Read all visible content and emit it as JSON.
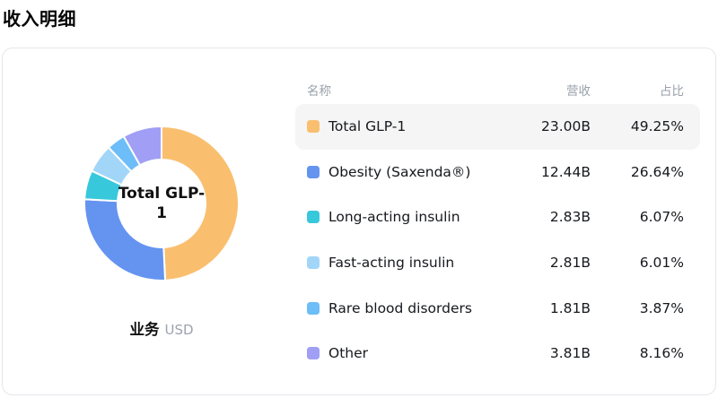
{
  "page": {
    "title": "收入明细"
  },
  "chart": {
    "center_label": "Total GLP-1",
    "caption_bold": "业务",
    "caption_unit": "USD"
  },
  "table": {
    "headers": {
      "name": "名称",
      "revenue": "营收",
      "share": "占比"
    }
  },
  "chart_data": {
    "type": "pie",
    "title": "收入明细",
    "center_label": "Total GLP-1",
    "unit": "USD",
    "legend_position": "right-table",
    "categories": [
      "Total GLP-1",
      "Obesity (Saxenda®)",
      "Long-acting insulin",
      "Fast-acting insulin",
      "Rare blood disorders",
      "Other"
    ],
    "revenue_billions": [
      23.0,
      12.44,
      2.83,
      2.81,
      1.81,
      3.81
    ],
    "share_percent": [
      49.25,
      26.64,
      6.07,
      6.01,
      3.87,
      8.16
    ],
    "series": [
      {
        "name": "Total GLP-1",
        "revenue": "23.00B",
        "share": "49.25%",
        "value": 49.25,
        "color": "#F9BF6F",
        "highlighted": true
      },
      {
        "name": "Obesity (Saxenda®)",
        "revenue": "12.44B",
        "share": "26.64%",
        "value": 26.64,
        "color": "#6494F0",
        "highlighted": false
      },
      {
        "name": "Long-acting insulin",
        "revenue": "2.83B",
        "share": "6.07%",
        "value": 6.07,
        "color": "#38C8DC",
        "highlighted": false
      },
      {
        "name": "Fast-acting insulin",
        "revenue": "2.81B",
        "share": "6.01%",
        "value": 6.01,
        "color": "#A2D6F8",
        "highlighted": false
      },
      {
        "name": "Rare blood disorders",
        "revenue": "1.81B",
        "share": "3.87%",
        "value": 3.87,
        "color": "#6CBDF8",
        "highlighted": false
      },
      {
        "name": "Other",
        "revenue": "3.81B",
        "share": "8.16%",
        "value": 8.16,
        "color": "#A09FF5",
        "highlighted": false
      }
    ],
    "donut": {
      "start_angle_deg": -90,
      "direction": "clockwise",
      "gap_stroke_color": "#ffffff"
    }
  }
}
